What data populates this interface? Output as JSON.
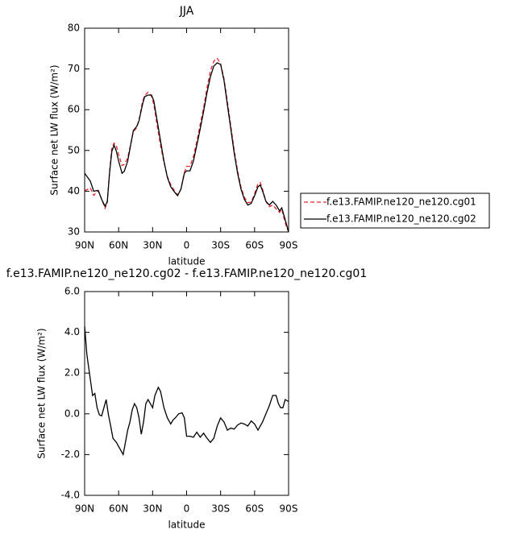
{
  "chart_data": [
    {
      "type": "line",
      "title": "JJA",
      "xlabel": "latitude",
      "ylabel": "Surface net LW flux (W/m²)",
      "x": [
        90,
        85,
        82,
        78,
        75,
        72,
        70,
        68,
        66,
        64,
        62,
        60,
        57,
        55,
        52,
        50,
        47,
        44,
        42,
        39,
        37,
        34,
        31,
        29,
        26,
        23,
        20,
        17,
        14,
        11,
        8,
        5,
        2,
        0,
        -3,
        -6,
        -9,
        -12,
        -15,
        -18,
        -21,
        -24,
        -27,
        -30,
        -33,
        -36,
        -39,
        -42,
        -45,
        -48,
        -51,
        -54,
        -57,
        -60,
        -63,
        -65,
        -67,
        -70,
        -73,
        -76,
        -79,
        -82,
        -84,
        -86,
        -88,
        -90
      ],
      "series": [
        {
          "name": "f.e13.FAMIP.ne120_ne120.cg01",
          "color": "#e8262b",
          "dashed": true,
          "values": [
            40.1,
            40.8,
            39,
            40.1,
            38.1,
            35.8,
            37.2,
            44.8,
            50.6,
            51.8,
            51.2,
            49,
            46.3,
            46.6,
            48.2,
            50.8,
            54.6,
            55.6,
            57.5,
            61.9,
            63.5,
            64.3,
            63.3,
            61.4,
            56.1,
            51.2,
            47.1,
            43.6,
            41.6,
            40.2,
            39.1,
            40.5,
            44.6,
            46.1,
            46.1,
            48.5,
            52.2,
            56.4,
            60.5,
            65.4,
            69.5,
            71.9,
            72.6,
            71.3,
            67.6,
            62,
            56,
            50.1,
            45,
            41,
            38.5,
            37.2,
            37.3,
            39.4,
            41.9,
            42.1,
            40.5,
            37.5,
            36.2,
            36.6,
            35.7,
            34.8,
            35.6,
            33.3,
            31.4,
            30
          ]
        },
        {
          "name": "f.e13.FAMIP.ne120_ne120.cg02",
          "color": "#000000",
          "dashed": false,
          "values": [
            44.4,
            42.5,
            40,
            40.2,
            38,
            36.3,
            37.5,
            44.5,
            49.8,
            51.3,
            49.8,
            47.4,
            44.4,
            44.9,
            47.4,
            50.4,
            54.9,
            55.9,
            57.3,
            61.2,
            63.2,
            63.6,
            63.6,
            62.2,
            57.3,
            52.3,
            47.4,
            43.4,
            41.1,
            39.9,
            38.9,
            40.5,
            44.4,
            45,
            45,
            47.4,
            51.3,
            55.3,
            59.6,
            64.2,
            68.1,
            70.7,
            71.5,
            71.1,
            67.2,
            61.2,
            55.3,
            49.4,
            44.4,
            40.5,
            38,
            36.6,
            37,
            38.9,
            41.1,
            41.5,
            40.1,
            37.5,
            36.6,
            37.5,
            36.6,
            35.2,
            35.9,
            34,
            32,
            30
          ]
        }
      ],
      "xlim": [
        90,
        -90
      ],
      "xticks": [
        {
          "value": 90,
          "label": "90N"
        },
        {
          "value": 60,
          "label": "60N"
        },
        {
          "value": 30,
          "label": "30N"
        },
        0,
        {
          "value": -30,
          "label": "30S"
        },
        {
          "value": -60,
          "label": "60S"
        },
        {
          "value": -90,
          "label": "90S"
        }
      ],
      "ylim": [
        30,
        80
      ],
      "yticks": [
        30,
        40,
        50,
        60,
        70,
        80
      ],
      "legend": "right"
    },
    {
      "type": "line",
      "title": "f.e13.FAMIP.ne120_ne120.cg02 - f.e13.FAMIP.ne120_ne120.cg01",
      "xlabel": "latitude",
      "ylabel": "Surface net LW flux (W/m²)",
      "x": [
        90,
        88,
        85,
        83,
        81,
        79,
        77,
        75,
        73,
        71,
        69,
        67,
        65,
        62,
        60,
        58,
        56,
        54,
        52,
        50,
        48,
        46,
        44,
        42,
        40,
        38,
        36,
        34,
        32,
        30,
        28,
        25,
        23,
        20,
        17,
        14,
        12,
        10,
        7,
        4,
        2,
        0,
        -3,
        -6,
        -9,
        -12,
        -15,
        -18,
        -21,
        -24,
        -27,
        -30,
        -33,
        -36,
        -39,
        -42,
        -45,
        -48,
        -51,
        -54,
        -57,
        -60,
        -63,
        -65,
        -67,
        -70,
        -73,
        -76,
        -79,
        -81,
        -83,
        -85,
        -87,
        -90
      ],
      "color": "#000000",
      "values": [
        4.3,
        2.9,
        1.7,
        0.9,
        1.0,
        0.3,
        -0.05,
        -0.1,
        0.3,
        0.7,
        -0.05,
        -0.6,
        -1.2,
        -1.4,
        -1.6,
        -1.8,
        -2.0,
        -1.4,
        -0.8,
        -0.4,
        0.2,
        0.5,
        0.3,
        -0.2,
        -1.0,
        -0.4,
        0.5,
        0.7,
        0.5,
        0.3,
        0.9,
        1.3,
        1.1,
        0.3,
        -0.2,
        -0.5,
        -0.3,
        -0.2,
        0.0,
        0.05,
        -0.2,
        -1.1,
        -1.1,
        -1.15,
        -0.9,
        -1.15,
        -0.95,
        -1.2,
        -1.4,
        -1.2,
        -0.6,
        -0.2,
        -0.4,
        -0.8,
        -0.7,
        -0.75,
        -0.55,
        -0.45,
        -0.5,
        -0.6,
        -0.35,
        -0.5,
        -0.8,
        -0.6,
        -0.4,
        0.0,
        0.4,
        0.9,
        0.9,
        0.5,
        0.3,
        0.3,
        0.7,
        0.6
      ],
      "xlim": [
        90,
        -90
      ],
      "xticks": [
        {
          "value": 90,
          "label": "90N"
        },
        {
          "value": 60,
          "label": "60N"
        },
        {
          "value": 30,
          "label": "30N"
        },
        0,
        {
          "value": -30,
          "label": "30S"
        },
        {
          "value": -60,
          "label": "60S"
        },
        {
          "value": -90,
          "label": "90S"
        }
      ],
      "ylim": [
        -4,
        6
      ],
      "yticks": [
        {
          "value": -4,
          "label": "-4.0"
        },
        {
          "value": -2,
          "label": "-2.0"
        },
        {
          "value": 0,
          "label": "0.0"
        },
        {
          "value": 2,
          "label": "2.0"
        },
        {
          "value": 4,
          "label": "4.0"
        },
        {
          "value": 6,
          "label": "6.0"
        }
      ]
    }
  ]
}
